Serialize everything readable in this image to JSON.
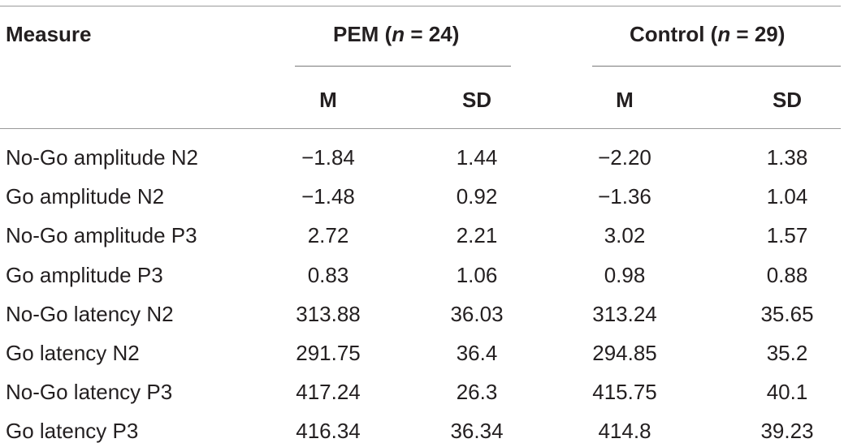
{
  "table": {
    "header": {
      "measure": "Measure",
      "groups": [
        {
          "name": "PEM",
          "n_label": "n",
          "n_value": "24"
        },
        {
          "name": "Control",
          "n_label": "n",
          "n_value": "29"
        }
      ],
      "subcolumns": [
        "M",
        "SD",
        "M",
        "SD"
      ]
    },
    "rows": [
      {
        "measure": "No-Go amplitude N2",
        "pem_m": "−1.84",
        "pem_sd": "1.44",
        "ctl_m": "−2.20",
        "ctl_sd": "1.38"
      },
      {
        "measure": "Go amplitude N2",
        "pem_m": "−1.48",
        "pem_sd": "0.92",
        "ctl_m": "−1.36",
        "ctl_sd": "1.04"
      },
      {
        "measure": "No-Go amplitude P3",
        "pem_m": "2.72",
        "pem_sd": "2.21",
        "ctl_m": "3.02",
        "ctl_sd": "1.57"
      },
      {
        "measure": "Go amplitude P3",
        "pem_m": "0.83",
        "pem_sd": "1.06",
        "ctl_m": "0.98",
        "ctl_sd": "0.88"
      },
      {
        "measure": "No-Go latency N2",
        "pem_m": "313.88",
        "pem_sd": "36.03",
        "ctl_m": "313.24",
        "ctl_sd": "35.65"
      },
      {
        "measure": "Go latency N2",
        "pem_m": "291.75",
        "pem_sd": "36.4",
        "ctl_m": "294.85",
        "ctl_sd": "35.2"
      },
      {
        "measure": "No-Go latency P3",
        "pem_m": "417.24",
        "pem_sd": "26.3",
        "ctl_m": "415.75",
        "ctl_sd": "40.1"
      },
      {
        "measure": "Go latency P3",
        "pem_m": "416.34",
        "pem_sd": "36.34",
        "ctl_m": "414.8",
        "ctl_sd": "39.23"
      }
    ]
  }
}
